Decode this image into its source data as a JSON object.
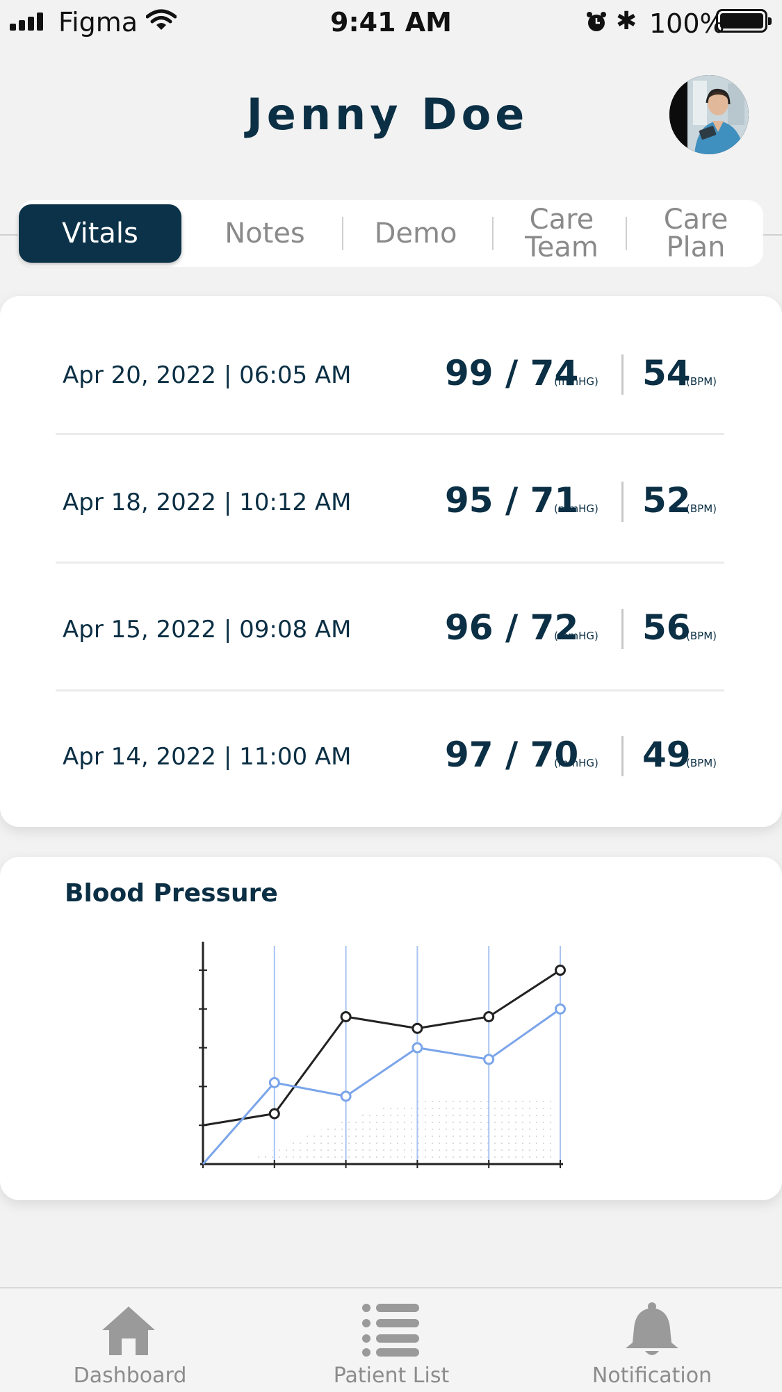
{
  "status_bar": {
    "carrier": "Figma",
    "time": "9:41 AM",
    "battery": "100%"
  },
  "header": {
    "patient_name": "Jenny Doe",
    "avatar_icon": "nurse-avatar"
  },
  "tabs": [
    {
      "label": "Vitals",
      "active": true
    },
    {
      "label": "Notes",
      "active": false
    },
    {
      "label": "Demo",
      "active": false
    },
    {
      "label": "Care Team",
      "active": false
    },
    {
      "label": "Care Plan",
      "active": false
    }
  ],
  "vitals": [
    {
      "datetime": "Apr 20, 2022 | 06:05 AM",
      "bp": "99 / 74",
      "bp_unit": "(mmHG)",
      "hr": "54",
      "hr_unit": "(BPM)"
    },
    {
      "datetime": "Apr 18, 2022 | 10:12 AM",
      "bp": "95 / 71",
      "bp_unit": "(mmHG)",
      "hr": "52",
      "hr_unit": "(BPM)"
    },
    {
      "datetime": "Apr 15, 2022 | 09:08 AM",
      "bp": "96 / 72",
      "bp_unit": "(mmHG)",
      "hr": "56",
      "hr_unit": "(BPM)"
    },
    {
      "datetime": "Apr 14, 2022 | 11:00 AM",
      "bp": "97 / 70",
      "bp_unit": "(mmHG)",
      "hr": "49",
      "hr_unit": "(BPM)"
    }
  ],
  "chart_card": {
    "title": "Blood Pressure"
  },
  "chart_data": {
    "type": "line",
    "title": "Blood Pressure",
    "xlabel": "",
    "ylabel": "",
    "x": [
      0,
      1,
      2,
      3,
      4,
      5
    ],
    "ylim": [
      0,
      5.7
    ],
    "grid": "vertical",
    "series": [
      {
        "color": "#222222",
        "values": [
          1.0,
          1.3,
          3.8,
          3.5,
          3.8,
          5.0
        ]
      },
      {
        "color": "#7ba5ea",
        "values": [
          0.0,
          2.1,
          1.75,
          3.0,
          2.7,
          4.0
        ]
      }
    ]
  },
  "bottom_nav": [
    {
      "label": "Dashboard",
      "icon": "home-icon"
    },
    {
      "label": "Patient List",
      "icon": "list-icon"
    },
    {
      "label": "Notification",
      "icon": "bell-icon"
    }
  ],
  "colors": {
    "primary": "#0b3248",
    "chart_line_dark": "#222222",
    "chart_line_blue": "#7ba5ea",
    "inactive": "#8a8a8a"
  }
}
